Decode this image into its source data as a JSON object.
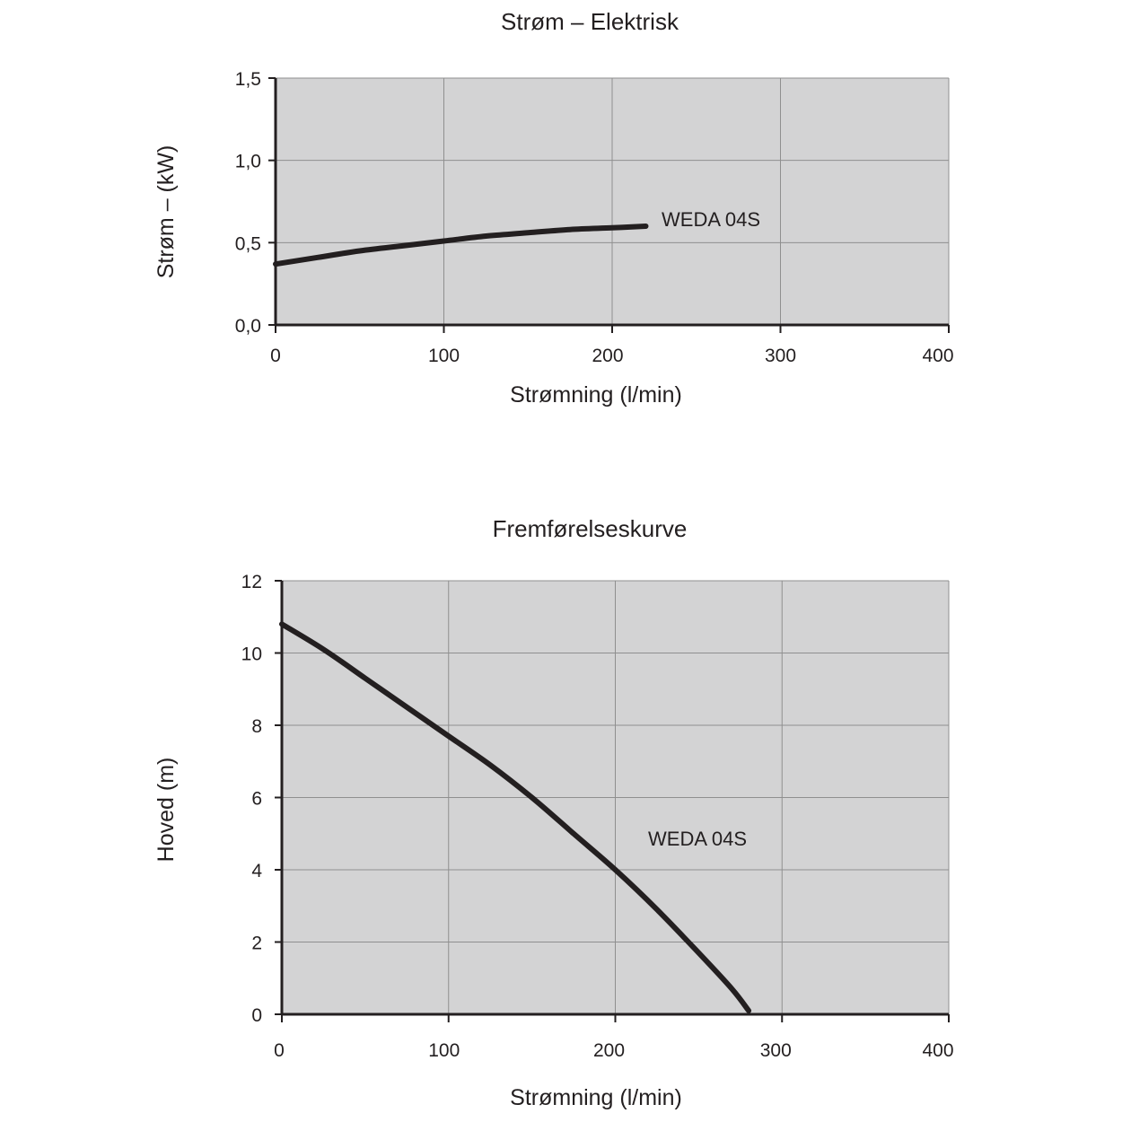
{
  "chart_data": [
    {
      "type": "line",
      "title": "Strøm – Elektrisk",
      "xlabel": "Strømning (l/min)",
      "ylabel": "Strøm – (kW)",
      "xlim": [
        0,
        400
      ],
      "ylim": [
        0,
        1.5
      ],
      "x_ticks": [
        0,
        100,
        200,
        300,
        400
      ],
      "x_tick_labels": [
        "0",
        "100",
        "200",
        "300",
        "400"
      ],
      "y_ticks": [
        0,
        0.5,
        1.0,
        1.5
      ],
      "y_tick_labels": [
        "0,0",
        "0,5",
        "1,0",
        "1,5"
      ],
      "grid": true,
      "series": [
        {
          "name": "WEDA 04S",
          "x": [
            0,
            25,
            50,
            75,
            100,
            125,
            150,
            175,
            200,
            220
          ],
          "y": [
            0.37,
            0.41,
            0.45,
            0.48,
            0.51,
            0.54,
            0.56,
            0.58,
            0.59,
            0.6
          ]
        }
      ]
    },
    {
      "type": "line",
      "title": "Fremførelseskurve",
      "xlabel": "Strømning (l/min)",
      "ylabel": "Hoved (m)",
      "xlim": [
        0,
        400
      ],
      "ylim": [
        0,
        12
      ],
      "x_ticks": [
        0,
        100,
        200,
        300,
        400
      ],
      "x_tick_labels": [
        "0",
        "100",
        "200",
        "300",
        "400"
      ],
      "y_ticks": [
        0,
        2,
        4,
        6,
        8,
        10,
        12
      ],
      "y_tick_labels": [
        "0",
        "2",
        "4",
        "6",
        "8",
        "10",
        "12"
      ],
      "grid": true,
      "series": [
        {
          "name": "WEDA 04S",
          "x": [
            0,
            25,
            50,
            75,
            100,
            125,
            150,
            175,
            200,
            225,
            250,
            270,
            280
          ],
          "y": [
            10.8,
            10.1,
            9.3,
            8.5,
            7.7,
            6.9,
            6.0,
            5.0,
            4.0,
            2.9,
            1.7,
            0.7,
            0.1
          ]
        }
      ]
    }
  ]
}
